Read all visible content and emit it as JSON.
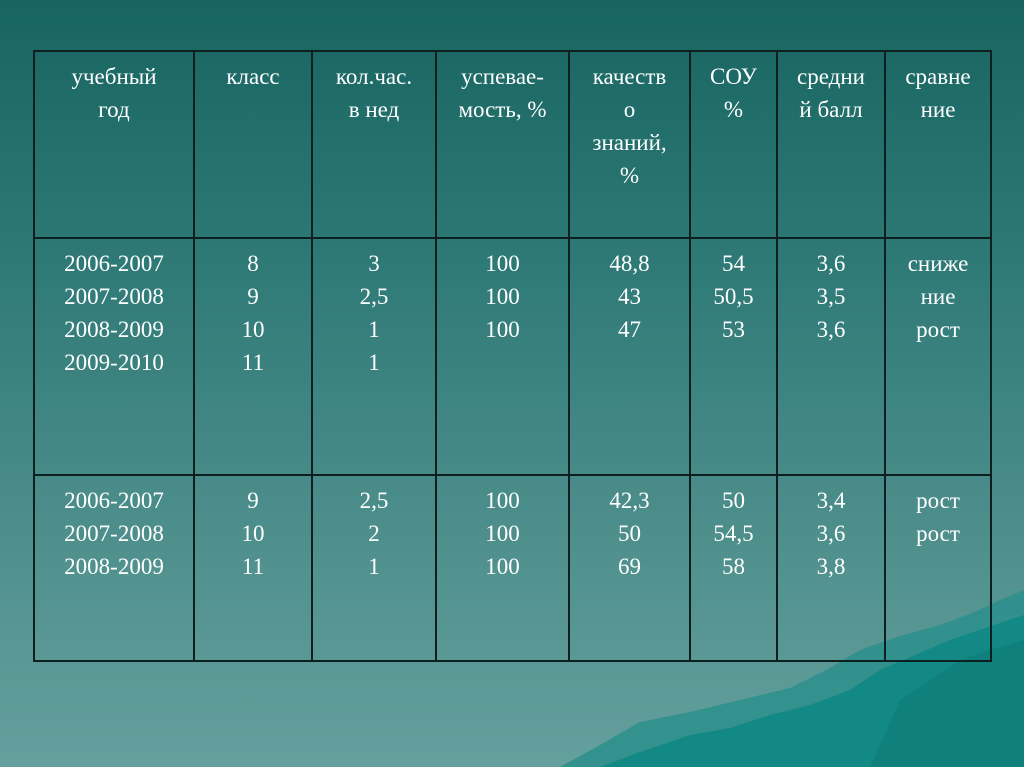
{
  "headers": [
    "учебный\nгод",
    "класс",
    "кол.час.\nв нед",
    "успевае-\nмость, %",
    "качеств\nо\nзнаний,\n%",
    "СОУ\n%",
    "средни\nй балл",
    "сравне\nние"
  ],
  "rows": [
    {
      "year": "2006-2007\n2007-2008\n2008-2009\n2009-2010",
      "grade": "8\n9\n10\n11",
      "hours": "3\n2,5\n1\n1",
      "success": "100\n100\n100",
      "quality": "48,8\n43\n47",
      "sou": "54\n50,5\n53",
      "avg": "3,6\n3,5\n3,6",
      "compare": "сниже\nние\nрост"
    },
    {
      "year": "2006-2007\n2007-2008\n2008-2009",
      "grade": "9\n10\n11",
      "hours": "2,5\n2\n1",
      "success": "100\n100\n100",
      "quality": "42,3\n50\n69",
      "sou": "50\n54,5\n58",
      "avg": "3,4\n3,6\n3,8",
      "compare": "рост\nрост"
    }
  ]
}
